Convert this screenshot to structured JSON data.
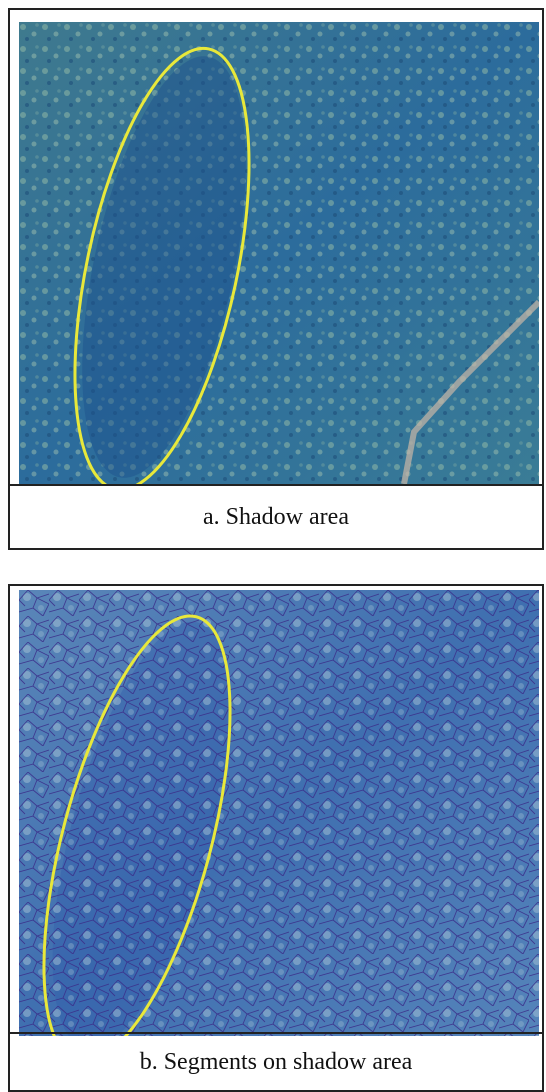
{
  "figure": {
    "panels": [
      {
        "caption": "a. Shadow area"
      },
      {
        "caption": "b. Segments on shadow area"
      }
    ]
  }
}
